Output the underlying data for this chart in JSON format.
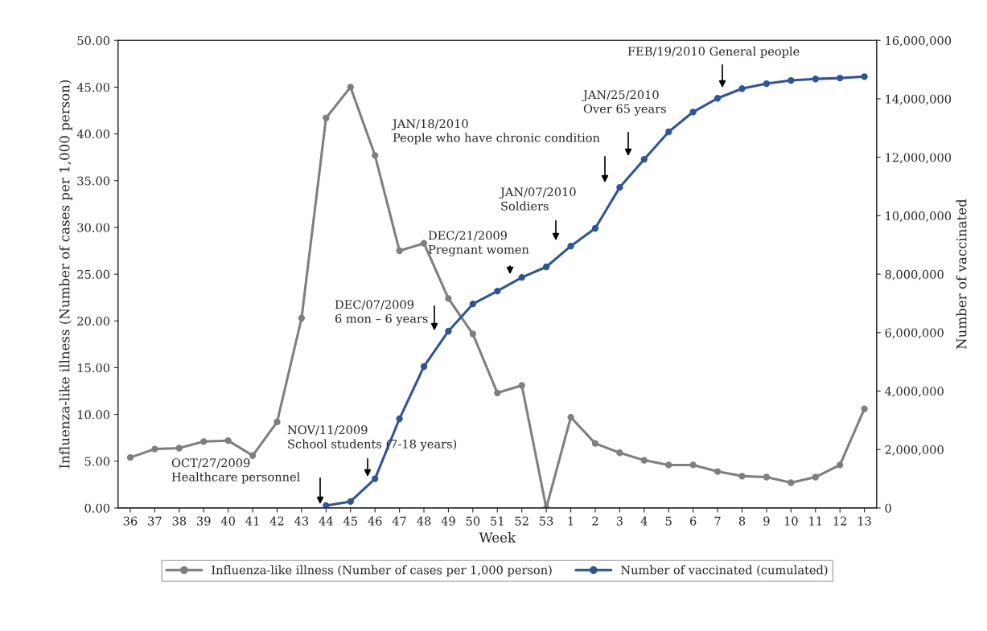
{
  "chart_data": {
    "type": "line",
    "xlabel": "Week",
    "ylabel": "Influenza-like illness (Number of cases per 1,000 person)",
    "y2label": "Number of vaccinated",
    "categories": [
      "36",
      "37",
      "38",
      "39",
      "40",
      "41",
      "42",
      "43",
      "44",
      "45",
      "46",
      "47",
      "48",
      "49",
      "50",
      "51",
      "52",
      "53",
      "1",
      "2",
      "3",
      "4",
      "5",
      "6",
      "7",
      "8",
      "9",
      "10",
      "11",
      "12",
      "13"
    ],
    "series": [
      {
        "name": "Influenza-like illness (Number of cases per 1,000 person)",
        "color": "#7f7f7f",
        "values": [
          5.4,
          6.3,
          6.4,
          7.1,
          7.2,
          5.6,
          9.2,
          20.3,
          41.7,
          45.0,
          37.7,
          27.5,
          28.3,
          22.4,
          18.6,
          12.3,
          13.1,
          0,
          9.7,
          6.9,
          5.9,
          5.1,
          4.6,
          4.6,
          3.9,
          3.4,
          3.3,
          2.7,
          3.3,
          4.6,
          10.6
        ]
      },
      {
        "name": "Number of vaccinated (cumulated)",
        "color": "#2f5597",
        "axis": "y2",
        "values": [
          null,
          null,
          null,
          null,
          null,
          null,
          null,
          null,
          80000,
          220000,
          1000000,
          3050000,
          4840000,
          6050000,
          6980000,
          7420000,
          7890000,
          8250000,
          8960000,
          9570000,
          10970000,
          11930000,
          12870000,
          13550000,
          14020000,
          14350000,
          14520000,
          14630000,
          14680000,
          14710000,
          14760000
        ]
      }
    ],
    "ylim": [
      0,
      50
    ],
    "yticks": [
      {
        "value": 0,
        "label": "0.00"
      },
      {
        "value": 5,
        "label": "5.00"
      },
      {
        "value": 10,
        "label": "10.00"
      },
      {
        "value": 15,
        "label": "15.00"
      },
      {
        "value": 20,
        "label": "20.00"
      },
      {
        "value": 25,
        "label": "25.00"
      },
      {
        "value": 30,
        "label": "30.00"
      },
      {
        "value": 35,
        "label": "35.00"
      },
      {
        "value": 40,
        "label": "40.00"
      },
      {
        "value": 45,
        "label": "45.00"
      },
      {
        "value": 50,
        "label": "50.00"
      }
    ],
    "y2lim": [
      0,
      16000000
    ],
    "y2ticks": [
      0,
      {
        "value": 2000000,
        "label": "2,000,000"
      },
      {
        "value": 4000000,
        "label": "4,000,000"
      },
      {
        "value": 6000000,
        "label": "6,000,000"
      },
      {
        "value": 8000000,
        "label": "8,000,000"
      },
      {
        "value": 10000000,
        "label": "10,000,000"
      },
      {
        "value": 12000000,
        "label": "12,000,000"
      },
      {
        "value": 14000000,
        "label": "14,000,000"
      },
      {
        "value": 16000000,
        "label": "16,000,000"
      }
    ],
    "annotations": [
      "OCT/27/2009\nHealthcare personnel",
      "NOV/11/2009\nSchool students (7-18 years)",
      "DEC/07/2009\n6 mon – 6 years",
      "DEC/21/2009\nPregnant women",
      "JAN/07/2010\nSoldiers",
      "JAN/18/2010\nPeople who have chronic condition",
      "JAN/25/2010\nOver 65 years",
      "FEB/19/2010 General people"
    ],
    "marker": "circle",
    "grid": false,
    "legend": "bottom"
  }
}
